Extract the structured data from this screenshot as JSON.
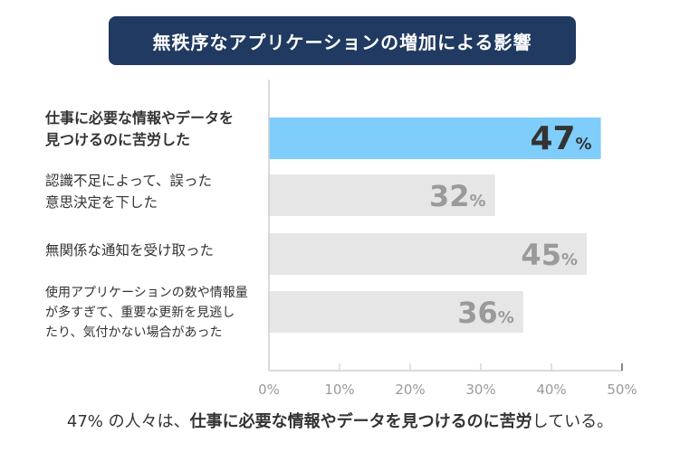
{
  "title": "無秩序なアプリケーションの増加による影響",
  "chart_data": {
    "type": "bar",
    "orientation": "horizontal",
    "categories": [
      "仕事に必要な情報やデータを\n見つけるのに苦労した",
      "認識不足によって、誤った\n意思決定を下した",
      "無関係な通知を受け取った",
      "使用アプリケーションの数や情報量\nが多すぎて、重要な更新を見逃し\nたり、気付かない場合があった"
    ],
    "values": [
      47,
      32,
      45,
      36
    ],
    "value_labels": [
      "47",
      "32",
      "45",
      "36"
    ],
    "unit": "%",
    "highlight_index": 0,
    "xlim": [
      0,
      50
    ],
    "xticks": [
      0,
      10,
      20,
      30,
      40,
      50
    ],
    "xtick_labels": [
      "0%",
      "10%",
      "20%",
      "30%",
      "40%",
      "50%"
    ],
    "colors": {
      "highlight": "#7fcdfb",
      "default": "#e6e6e6",
      "highlight_text": "#333333",
      "default_text": "#9a9a9a"
    }
  },
  "footer": {
    "prefix": "47% の人々は、",
    "bold": "仕事に必要な情報やデータを見つけるのに苦労",
    "suffix": "している。"
  }
}
